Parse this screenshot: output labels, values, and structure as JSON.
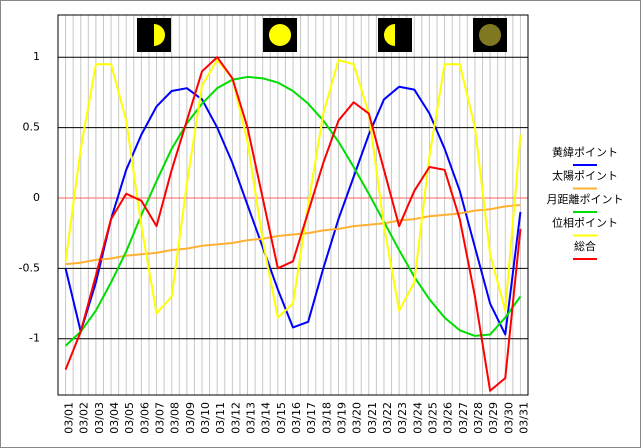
{
  "chart_data": {
    "type": "line",
    "categories": [
      "03/01",
      "03/02",
      "03/03",
      "03/04",
      "03/05",
      "03/06",
      "03/07",
      "03/08",
      "03/09",
      "03/10",
      "03/11",
      "03/12",
      "03/13",
      "03/14",
      "03/15",
      "03/16",
      "03/17",
      "03/18",
      "03/19",
      "03/20",
      "03/21",
      "03/22",
      "03/23",
      "03/24",
      "03/25",
      "03/26",
      "03/27",
      "03/28",
      "03/29",
      "03/30",
      "03/31"
    ],
    "series": [
      {
        "name": "黄緯ポイント",
        "color": "#0000ff",
        "values": [
          -0.5,
          -0.95,
          -0.6,
          -0.15,
          0.2,
          0.45,
          0.65,
          0.76,
          0.78,
          0.7,
          0.5,
          0.25,
          -0.05,
          -0.35,
          -0.65,
          -0.92,
          -0.88,
          -0.5,
          -0.15,
          0.15,
          0.45,
          0.7,
          0.79,
          0.77,
          0.6,
          0.35,
          0.05,
          -0.35,
          -0.75,
          -0.97,
          -0.1
        ]
      },
      {
        "name": "太陽ポイント",
        "color": "#ffb030",
        "values": [
          -0.47,
          -0.46,
          -0.44,
          -0.43,
          -0.41,
          -0.4,
          -0.39,
          -0.37,
          -0.36,
          -0.34,
          -0.33,
          -0.32,
          -0.3,
          -0.29,
          -0.27,
          -0.26,
          -0.25,
          -0.23,
          -0.22,
          -0.2,
          -0.19,
          -0.18,
          -0.16,
          -0.15,
          -0.13,
          -0.12,
          -0.11,
          -0.09,
          -0.08,
          -0.06,
          -0.05
        ]
      },
      {
        "name": "月距離ポイント",
        "color": "#00dd00",
        "values": [
          -1.05,
          -0.95,
          -0.8,
          -0.6,
          -0.38,
          -0.12,
          0.12,
          0.35,
          0.53,
          0.67,
          0.78,
          0.84,
          0.86,
          0.85,
          0.82,
          0.76,
          0.67,
          0.55,
          0.4,
          0.22,
          0.03,
          -0.17,
          -0.37,
          -0.56,
          -0.72,
          -0.85,
          -0.94,
          -0.98,
          -0.97,
          -0.85,
          -0.7
        ]
      },
      {
        "name": "位相ポイント",
        "color": "#ffff00",
        "values": [
          -0.45,
          0.35,
          0.95,
          0.95,
          0.55,
          -0.2,
          -0.82,
          -0.7,
          0.1,
          0.8,
          0.98,
          0.85,
          0.4,
          -0.3,
          -0.85,
          -0.75,
          -0.05,
          0.6,
          0.98,
          0.95,
          0.6,
          -0.2,
          -0.8,
          -0.6,
          0.3,
          0.95,
          0.95,
          0.5,
          -0.4,
          -0.8,
          0.45
        ]
      },
      {
        "name": "総合",
        "color": "#ff0000",
        "values": [
          -1.22,
          -0.95,
          -0.55,
          -0.15,
          0.03,
          -0.02,
          -0.2,
          0.2,
          0.55,
          0.9,
          1.0,
          0.85,
          0.5,
          0.0,
          -0.5,
          -0.45,
          -0.1,
          0.25,
          0.55,
          0.68,
          0.6,
          0.2,
          -0.2,
          0.05,
          0.22,
          0.2,
          -0.15,
          -0.7,
          -1.37,
          -1.28,
          -0.22
        ]
      }
    ],
    "ylim": [
      -1.4,
      1.3
    ],
    "yticks": [
      1,
      0.5,
      0,
      -0.5,
      -1
    ],
    "grid": true,
    "zero_line": "#ff6060",
    "legend": "right"
  }
}
